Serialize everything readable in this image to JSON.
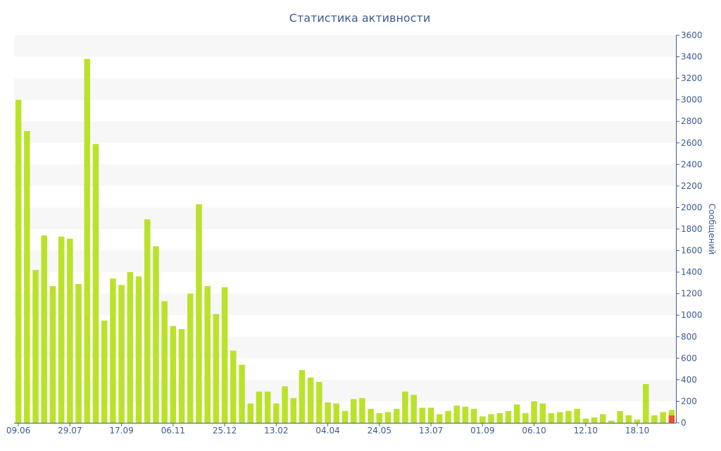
{
  "colors": {
    "bar": "#bbe22b",
    "highlight": "#e8542a",
    "text": "#3e5a8f",
    "band": "#f7f7f7",
    "axis": "#3e5a8f"
  },
  "chart_data": {
    "type": "bar",
    "title": "Статистика активности",
    "xlabel": "",
    "ylabel": "Сообщений",
    "ylim": [
      0,
      3600
    ],
    "yticks": [
      0,
      200,
      400,
      600,
      800,
      1000,
      1200,
      1400,
      1600,
      1800,
      2000,
      2200,
      2400,
      2600,
      2800,
      3000,
      3200,
      3400,
      3600
    ],
    "ytick_labels": [
      "0",
      "200",
      "400",
      "600",
      "800",
      "1000",
      "1200",
      "1400",
      "1600",
      "1800",
      "2000",
      "2200",
      "2400",
      "2600",
      "2800",
      "3000",
      "3200",
      "3400",
      "3600"
    ],
    "y_axis_side": "right",
    "grid": "alternating horizontal bands",
    "x_tick_labels": [
      {
        "index": 0,
        "label": "09.06"
      },
      {
        "index": 6,
        "label": "29.07"
      },
      {
        "index": 12,
        "label": "17.09"
      },
      {
        "index": 18,
        "label": "06.11"
      },
      {
        "index": 24,
        "label": "25.12"
      },
      {
        "index": 30,
        "label": "13.02"
      },
      {
        "index": 36,
        "label": "04.04"
      },
      {
        "index": 42,
        "label": "24.05"
      },
      {
        "index": 48,
        "label": "13.07"
      },
      {
        "index": 54,
        "label": "01.09"
      },
      {
        "index": 60,
        "label": "06.10"
      },
      {
        "index": 66,
        "label": "12.10"
      },
      {
        "index": 72,
        "label": "18.10"
      }
    ],
    "values": [
      3000,
      2710,
      1420,
      1740,
      1270,
      1730,
      1710,
      1290,
      3380,
      2590,
      950,
      1340,
      1280,
      1400,
      1360,
      1890,
      1640,
      1130,
      900,
      870,
      1200,
      2030,
      1270,
      1010,
      1260,
      670,
      540,
      180,
      290,
      290,
      180,
      340,
      230,
      490,
      420,
      380,
      190,
      180,
      110,
      220,
      230,
      130,
      90,
      100,
      130,
      290,
      260,
      140,
      140,
      80,
      110,
      160,
      150,
      130,
      60,
      80,
      90,
      110,
      170,
      90,
      200,
      180,
      90,
      100,
      110,
      130,
      40,
      50,
      80,
      20,
      110,
      70,
      30,
      360,
      70,
      100,
      120
    ],
    "last_bar_segments": [
      {
        "color": "highlight",
        "value": 70
      },
      {
        "color": "bar",
        "value": 50
      }
    ]
  }
}
